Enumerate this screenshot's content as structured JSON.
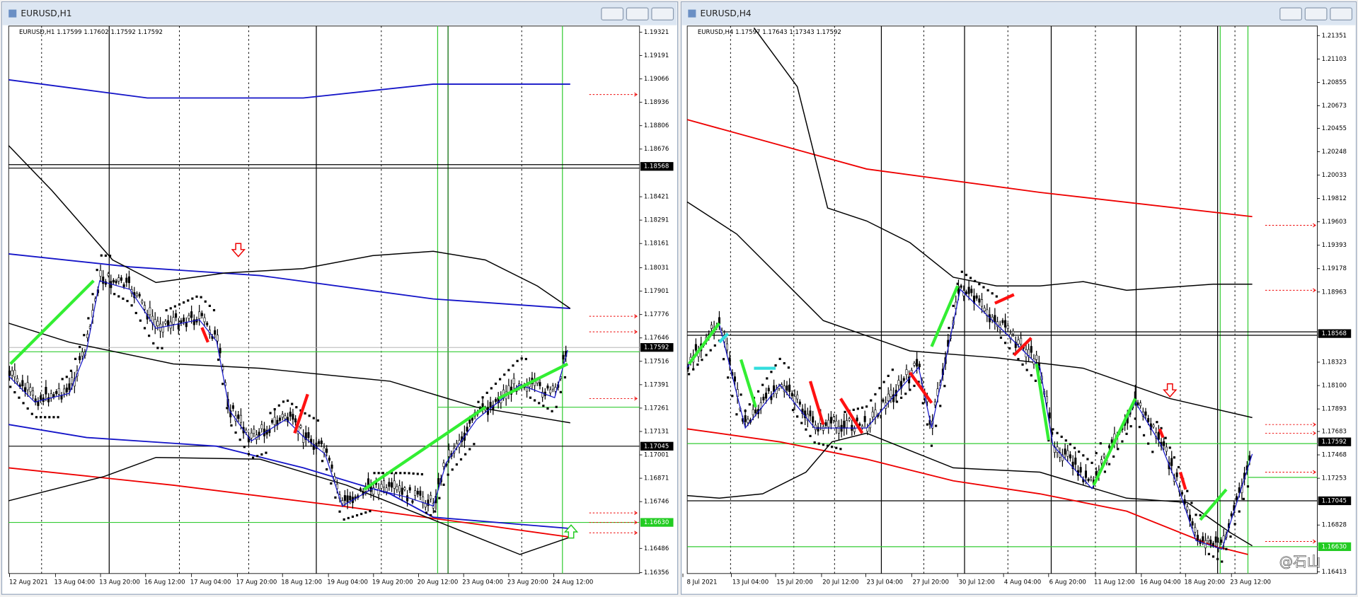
{
  "windows": [
    {
      "title": "EURUSD,H1",
      "header": "EURUSD,H1  1.17599 1.17602 1.17592 1.17592",
      "price_labels": [
        "1.19321",
        "1.19191",
        "1.19066",
        "1.18936",
        "1.18806",
        "1.18676",
        "1.18421",
        "1.18291",
        "1.18161",
        "1.18031",
        "1.17901",
        "1.17776",
        "1.17646",
        "1.17516",
        "1.17391",
        "1.17261",
        "1.17131",
        "1.17001",
        "1.16871",
        "1.16746",
        "1.16486",
        "1.16356"
      ],
      "highlight_labels": [
        "1.18568",
        "1.17592",
        "1.17045",
        "1.16630"
      ],
      "time_labels": [
        "12 Aug 2021",
        "13 Aug 04:00",
        "13 Aug 20:00",
        "16 Aug 12:00",
        "17 Aug 04:00",
        "17 Aug 20:00",
        "18 Aug 12:00",
        "19 Aug 04:00",
        "19 Aug 20:00",
        "20 Aug 12:00",
        "23 Aug 04:00",
        "23 Aug 20:00",
        "24 Aug 12:00"
      ]
    },
    {
      "title": "EURUSD,H4",
      "header": "EURUSD,H4  1.17597 1.17643 1.17343 1.17592",
      "price_labels": [
        "1.21351",
        "1.21103",
        "1.20855",
        "1.20673",
        "1.20455",
        "1.20248",
        "1.20033",
        "1.19812",
        "1.19603",
        "1.19393",
        "1.19178",
        "1.18963",
        "1.18323",
        "1.18100",
        "1.17893",
        "1.17683",
        "1.17468",
        "1.17253",
        "1.16828",
        "1.16413"
      ],
      "highlight_labels": [
        "1.18568",
        "1.17592",
        "1.17045",
        "1.16630"
      ],
      "time_labels": [
        "8 Jul 2021",
        "13 Jul 04:00",
        "15 Jul 20:00",
        "20 Jul 12:00",
        "23 Jul 04:00",
        "27 Jul 20:00",
        "30 Jul 12:00",
        "4 Aug 04:00",
        "6 Aug 20:00",
        "11 Aug 12:00",
        "16 Aug 04:00",
        "18 Aug 20:00",
        "23 Aug 12:00"
      ]
    }
  ],
  "watermark": "@石山"
}
